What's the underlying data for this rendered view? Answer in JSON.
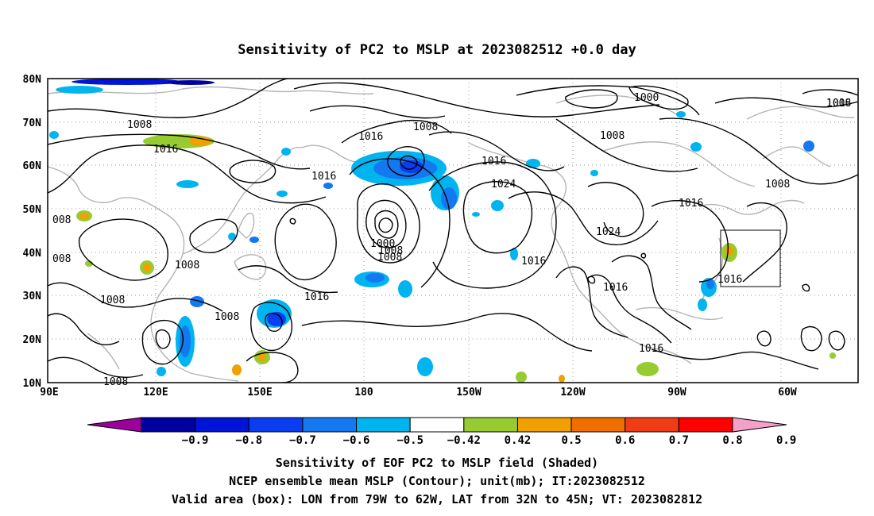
{
  "title": "Sensitivity of PC2 to MSLP at 2023082512 +0.0 day",
  "lat_labels": [
    "80N",
    "70N",
    "60N",
    "50N",
    "40N",
    "30N",
    "20N",
    "10N"
  ],
  "lon_labels": [
    "90E",
    "120E",
    "150E",
    "180",
    "150W",
    "120W",
    "90W",
    "60W"
  ],
  "contour_labels": [
    "1008",
    "1016",
    "1016",
    "1008",
    "1016",
    "1008",
    "1000",
    "1008",
    "1016",
    "1016",
    "1024",
    "1000",
    "1008",
    "1016",
    "1016",
    "1024",
    "1016",
    "1016",
    "1016",
    "1008",
    "1008",
    "1008",
    "008",
    "008",
    "1008",
    "1008",
    "1008",
    "1016"
  ],
  "colorbar": {
    "labels": [
      "-0.9",
      "-0.8",
      "-0.7",
      "-0.6",
      "-0.5",
      "-0.42",
      "0.42",
      "0.5",
      "0.6",
      "0.7",
      "0.8",
      "0.9"
    ],
    "colors": [
      "#9c009c",
      "#0000a0",
      "#0014d8",
      "#0a3cf0",
      "#1478f0",
      "#00b4f0",
      "#ffffff",
      "#96cc32",
      "#f0a000",
      "#f06e00",
      "#f03c14",
      "#ff0000",
      "#f4a0c8"
    ]
  },
  "valid_box": {
    "lon_from": "79W",
    "lon_to": "62W",
    "lat_from": "32N",
    "lat_to": "45N"
  },
  "captions": [
    "Sensitivity of EOF PC2 to MSLP field (Shaded)",
    "NCEP ensemble mean MSLP (Contour); unit(mb); IT:2023082512",
    "Valid area (box): LON from 79W to 62W, LAT from 32N to 45N; VT: 2023082812"
  ]
}
